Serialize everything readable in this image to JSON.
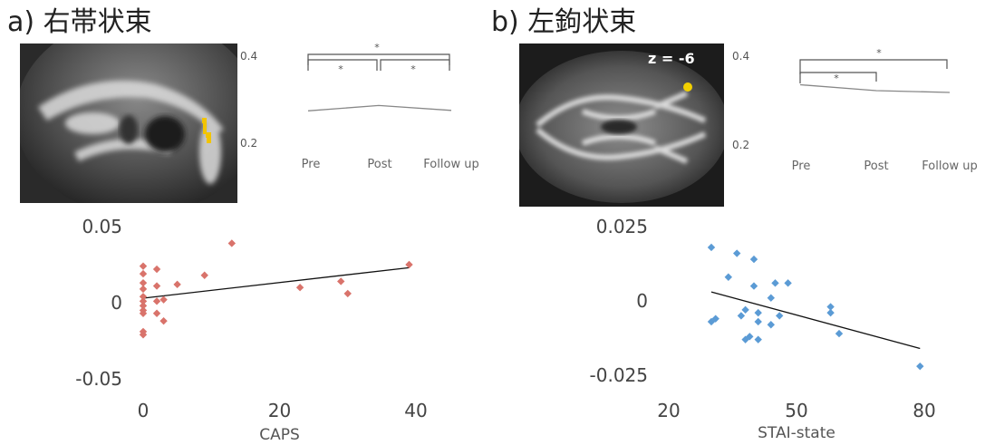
{
  "figure": {
    "panel_a": {
      "title": "a) 右帯状束",
      "slice_label": ""
    },
    "panel_b": {
      "title": "b) 左鉤状束",
      "slice_label": "z = -6"
    }
  },
  "chart_data": [
    {
      "type": "line",
      "panel": "a",
      "categories": [
        "Pre",
        "Post",
        "Follow up"
      ],
      "values": [
        0.275,
        0.287,
        0.276
      ],
      "ylim": [
        0.2,
        0.4
      ],
      "yticks": [
        "0.4",
        "0.2"
      ],
      "significance": [
        "*",
        "*",
        "*"
      ],
      "title": "",
      "xlabel": "",
      "ylabel": ""
    },
    {
      "type": "line",
      "panel": "b",
      "categories": [
        "Pre",
        "Post",
        "Follow up"
      ],
      "values": [
        0.335,
        0.322,
        0.318
      ],
      "ylim": [
        0.2,
        0.4
      ],
      "yticks": [
        "0.4",
        "0.2"
      ],
      "significance": [
        "*",
        "*"
      ],
      "title": "",
      "xlabel": "",
      "ylabel": ""
    },
    {
      "type": "scatter",
      "panel": "a",
      "color": "#d9736b",
      "xlabel": "CAPS",
      "ylabel": "",
      "title": "",
      "xlim": [
        0,
        40
      ],
      "ylim": [
        -0.05,
        0.05
      ],
      "xticks": [
        0,
        20,
        40
      ],
      "yticks": [
        "0.05",
        "0",
        "-0.05"
      ],
      "points": [
        {
          "x": 0,
          "y": 0.024
        },
        {
          "x": 0,
          "y": 0.019
        },
        {
          "x": 0,
          "y": 0.013
        },
        {
          "x": 0,
          "y": 0.009
        },
        {
          "x": 0,
          "y": 0.004
        },
        {
          "x": 0,
          "y": 0.001
        },
        {
          "x": 0,
          "y": -0.002
        },
        {
          "x": 0,
          "y": -0.005
        },
        {
          "x": 0,
          "y": -0.007
        },
        {
          "x": 0,
          "y": -0.019
        },
        {
          "x": 0,
          "y": -0.021
        },
        {
          "x": 2,
          "y": 0.022
        },
        {
          "x": 2,
          "y": 0.011
        },
        {
          "x": 2,
          "y": 0.001
        },
        {
          "x": 2,
          "y": -0.007
        },
        {
          "x": 3,
          "y": 0.002
        },
        {
          "x": 3,
          "y": -0.012
        },
        {
          "x": 5,
          "y": 0.012
        },
        {
          "x": 9,
          "y": 0.018
        },
        {
          "x": 13,
          "y": 0.039
        },
        {
          "x": 23,
          "y": 0.01
        },
        {
          "x": 29,
          "y": 0.014
        },
        {
          "x": 30,
          "y": 0.006
        },
        {
          "x": 39,
          "y": 0.025
        }
      ],
      "trendline": [
        {
          "x": 0,
          "y": 0.003
        },
        {
          "x": 39,
          "y": 0.023
        }
      ]
    },
    {
      "type": "scatter",
      "panel": "b",
      "color": "#5b9bd5",
      "xlabel": "STAI-state",
      "ylabel": "",
      "title": "",
      "xlim": [
        20,
        80
      ],
      "ylim": [
        -0.025,
        0.025
      ],
      "xticks": [
        20,
        50,
        80
      ],
      "yticks": [
        "0.025",
        "0",
        "-0.025"
      ],
      "points": [
        {
          "x": 30,
          "y": 0.018
        },
        {
          "x": 30,
          "y": -0.007
        },
        {
          "x": 31,
          "y": -0.006
        },
        {
          "x": 34,
          "y": 0.008
        },
        {
          "x": 36,
          "y": 0.016
        },
        {
          "x": 37,
          "y": -0.005
        },
        {
          "x": 38,
          "y": -0.003
        },
        {
          "x": 38,
          "y": -0.013
        },
        {
          "x": 39,
          "y": -0.012
        },
        {
          "x": 40,
          "y": 0.014
        },
        {
          "x": 40,
          "y": 0.005
        },
        {
          "x": 41,
          "y": -0.004
        },
        {
          "x": 41,
          "y": -0.007
        },
        {
          "x": 41,
          "y": -0.013
        },
        {
          "x": 44,
          "y": 0.001
        },
        {
          "x": 44,
          "y": -0.008
        },
        {
          "x": 45,
          "y": 0.006
        },
        {
          "x": 46,
          "y": -0.005
        },
        {
          "x": 48,
          "y": 0.006
        },
        {
          "x": 58,
          "y": -0.002
        },
        {
          "x": 58,
          "y": -0.004
        },
        {
          "x": 60,
          "y": -0.011
        },
        {
          "x": 79,
          "y": -0.022
        }
      ],
      "trendline": [
        {
          "x": 30,
          "y": 0.003
        },
        {
          "x": 79,
          "y": -0.016
        }
      ]
    }
  ]
}
